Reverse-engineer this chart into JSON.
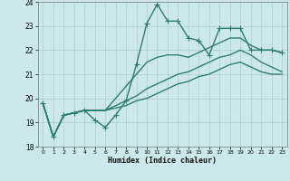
{
  "title": "",
  "xlabel": "Humidex (Indice chaleur)",
  "xlim": [
    -0.5,
    23.5
  ],
  "ylim": [
    18,
    24
  ],
  "yticks": [
    18,
    19,
    20,
    21,
    22,
    23,
    24
  ],
  "xticks": [
    0,
    1,
    2,
    3,
    4,
    5,
    6,
    7,
    8,
    9,
    10,
    11,
    12,
    13,
    14,
    15,
    16,
    17,
    18,
    19,
    20,
    21,
    22,
    23
  ],
  "bg_color": "#cde8ec",
  "grid_color": "#aacdd4",
  "line_color": "#2e7d6e",
  "line_width": 1.0,
  "marker": "+",
  "marker_size": 4,
  "curves": [
    [
      19.8,
      18.4,
      19.3,
      19.4,
      19.5,
      19.1,
      18.8,
      19.3,
      19.9,
      21.4,
      23.1,
      23.9,
      23.2,
      23.2,
      22.5,
      22.4,
      21.8,
      22.9,
      22.9,
      22.9,
      22.0,
      22.0,
      22.0,
      21.9
    ],
    [
      19.8,
      18.4,
      19.3,
      19.4,
      19.5,
      19.5,
      19.5,
      20.0,
      20.5,
      21.0,
      21.5,
      21.7,
      21.8,
      21.8,
      21.7,
      21.9,
      22.1,
      22.3,
      22.5,
      22.5,
      22.2,
      22.0,
      22.0,
      21.9
    ],
    [
      19.8,
      18.4,
      19.3,
      19.4,
      19.5,
      19.5,
      19.5,
      19.7,
      19.9,
      20.1,
      20.4,
      20.6,
      20.8,
      21.0,
      21.1,
      21.3,
      21.5,
      21.7,
      21.8,
      22.0,
      21.8,
      21.5,
      21.3,
      21.1
    ],
    [
      19.8,
      18.4,
      19.3,
      19.4,
      19.5,
      19.5,
      19.5,
      19.6,
      19.7,
      19.9,
      20.0,
      20.2,
      20.4,
      20.6,
      20.7,
      20.9,
      21.0,
      21.2,
      21.4,
      21.5,
      21.3,
      21.1,
      21.0,
      21.0
    ]
  ]
}
